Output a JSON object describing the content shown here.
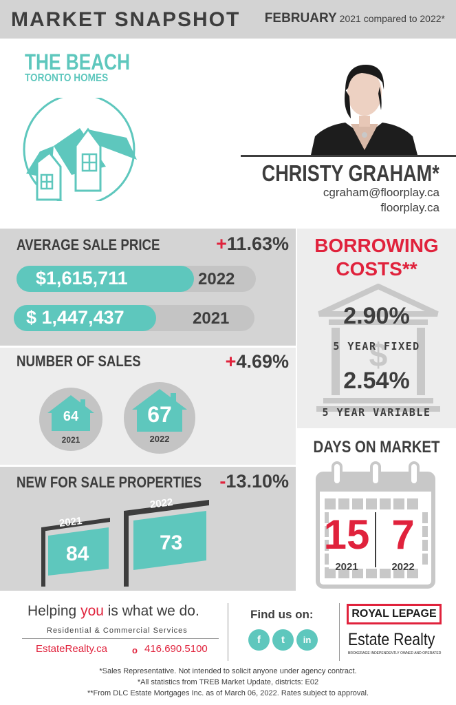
{
  "header": {
    "title": "MARKET SNAPSHOT",
    "month": "FEBRUARY",
    "comparison": "2021 compared to 2022*"
  },
  "area": {
    "name": "THE BEACH",
    "subtitle": "TORONTO HOMES"
  },
  "agent": {
    "name": "CHRISTY GRAHAM*",
    "email": "cgraham@floorplay.ca",
    "website": "floorplay.ca"
  },
  "average_sale_price": {
    "title": "AVERAGE SALE PRICE",
    "change_sign": "+",
    "change_value": "11.63%",
    "bars": [
      {
        "value": "$1,615,711",
        "year": "2022",
        "fill_fraction": 0.74
      },
      {
        "value": "$ 1,447,437",
        "year": "2021",
        "fill_fraction": 0.59
      }
    ]
  },
  "number_of_sales": {
    "title": "NUMBER OF SALES",
    "change_sign": "+",
    "change_value": "4.69%",
    "items": [
      {
        "value": "64",
        "year": "2021"
      },
      {
        "value": "67",
        "year": "2022"
      }
    ]
  },
  "new_for_sale": {
    "title": "NEW FOR SALE PROPERTIES",
    "change_sign": "-",
    "change_value": "13.10%",
    "items": [
      {
        "value": "84",
        "year": "2021"
      },
      {
        "value": "73",
        "year": "2022"
      }
    ]
  },
  "borrowing": {
    "title_line1": "BORROWING",
    "title_line2": "COSTS**",
    "fixed_rate": "2.90%",
    "fixed_label": "5 YEAR FIXED",
    "variable_rate": "2.54%",
    "variable_label": "5 YEAR VARIABLE",
    "bank_icon": "bank-dollar-icon"
  },
  "days_on_market": {
    "title": "DAYS ON MARKET",
    "items": [
      {
        "value": "15",
        "year": "2021"
      },
      {
        "value": "7",
        "year": "2022"
      }
    ]
  },
  "footer": {
    "tagline_before": "Helping ",
    "tagline_highlight": "you",
    "tagline_after": " is what we do.",
    "services": "Residential & Commercial Services",
    "website": "EstateRealty.ca",
    "phone_icon": "o",
    "phone": "416.690.5100",
    "find_us": "Find us on:",
    "social": [
      {
        "icon": "facebook-icon",
        "glyph": "f"
      },
      {
        "icon": "twitter-icon",
        "glyph": "t"
      },
      {
        "icon": "linkedin-icon",
        "glyph": "in"
      }
    ],
    "logo_main": "ROYAL LEPAGE",
    "logo_sub": "Estate Realty",
    "logo_tag": "BROKERAGE INDEPENDENTLY OWNED AND OPERATED",
    "notes": [
      "*Sales Representative. Not intended to solicit anyone under agency contract.",
      "*All statistics from TREB Market Update, districts: E02",
      "**From DLC Estate Mortgages Inc. as of March 06, 2022. Rates subject to approval."
    ]
  },
  "colors": {
    "teal": "#5ec7bd",
    "red": "#e0223c",
    "dark": "#3d3d3d",
    "gray": "#d4d4d4"
  }
}
